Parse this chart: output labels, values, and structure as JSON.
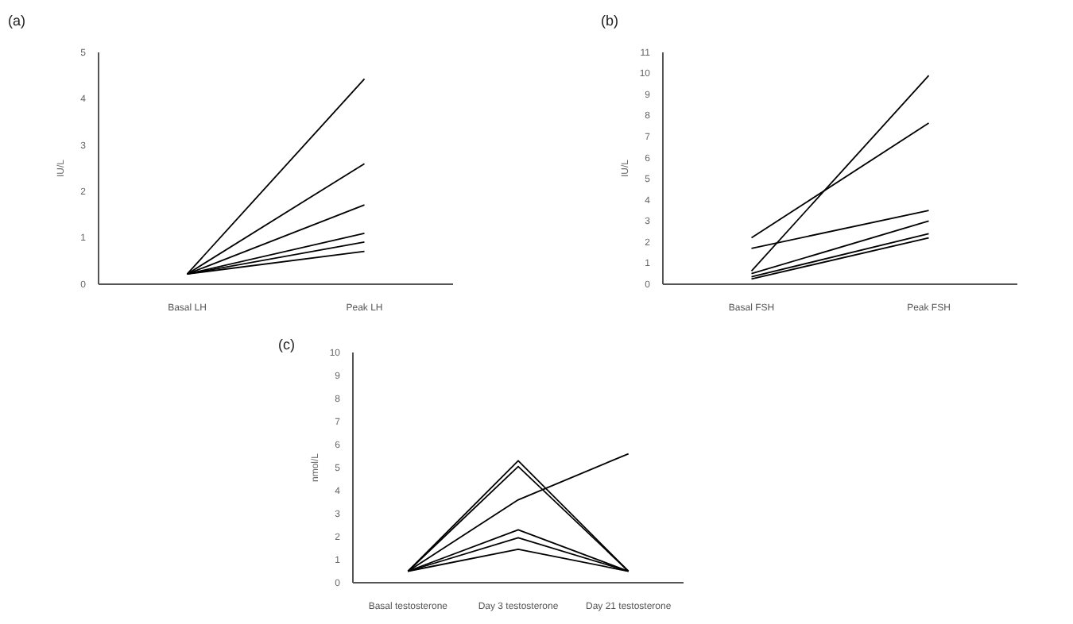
{
  "chart_data": [
    {
      "type": "line",
      "title": "(a)",
      "ylabel": "IU/L",
      "categories": [
        "Basal LH",
        "Peak LH"
      ],
      "ylim": [
        0,
        5
      ],
      "yticks": [
        0,
        1,
        2,
        3,
        4,
        5
      ],
      "grid": false,
      "marker": "none",
      "series": [
        {
          "color": "#000000",
          "values": [
            0.22,
            4.43
          ]
        },
        {
          "color": "#000000",
          "values": [
            0.22,
            2.6
          ]
        },
        {
          "color": "#000000",
          "values": [
            0.22,
            1.71
          ]
        },
        {
          "color": "#000000",
          "values": [
            0.22,
            1.1
          ]
        },
        {
          "color": "#000000",
          "values": [
            0.22,
            0.91
          ]
        },
        {
          "color": "#000000",
          "values": [
            0.22,
            0.71
          ]
        }
      ]
    },
    {
      "type": "line",
      "title": "(b)",
      "ylabel": "IU/L",
      "categories": [
        "Basal FSH",
        "Peak FSH"
      ],
      "ylim": [
        0,
        11
      ],
      "yticks": [
        0,
        1,
        2,
        3,
        4,
        5,
        6,
        7,
        8,
        9,
        10,
        11
      ],
      "grid": false,
      "marker": "none",
      "series": [
        {
          "color": "#000000",
          "values": [
            0.63,
            9.9
          ]
        },
        {
          "color": "#000000",
          "values": [
            2.2,
            7.65
          ]
        },
        {
          "color": "#000000",
          "values": [
            1.7,
            3.5
          ]
        },
        {
          "color": "#000000",
          "values": [
            0.5,
            3.0
          ]
        },
        {
          "color": "#000000",
          "values": [
            0.35,
            2.4
          ]
        },
        {
          "color": "#000000",
          "values": [
            0.25,
            2.2
          ]
        }
      ]
    },
    {
      "type": "line",
      "title": "(c)",
      "ylabel": "nmol/L",
      "categories": [
        "Basal testosterone",
        "Day 3 testosterone",
        "Day 21 testosterone"
      ],
      "ylim": [
        0,
        10
      ],
      "yticks": [
        0,
        1,
        2,
        3,
        4,
        5,
        6,
        7,
        8,
        9,
        10
      ],
      "grid": false,
      "marker": "none",
      "series": [
        {
          "color": "#000000",
          "values": [
            0.5,
            5.3,
            0.5
          ]
        },
        {
          "color": "#000000",
          "values": [
            0.5,
            5.05,
            0.5
          ]
        },
        {
          "color": "#000000",
          "values": [
            0.5,
            3.6,
            5.6
          ]
        },
        {
          "color": "#000000",
          "values": [
            0.5,
            2.3,
            0.5
          ]
        },
        {
          "color": "#000000",
          "values": [
            0.5,
            1.95,
            0.5
          ]
        },
        {
          "color": "#000000",
          "values": [
            0.5,
            1.45,
            0.5
          ]
        }
      ]
    }
  ]
}
